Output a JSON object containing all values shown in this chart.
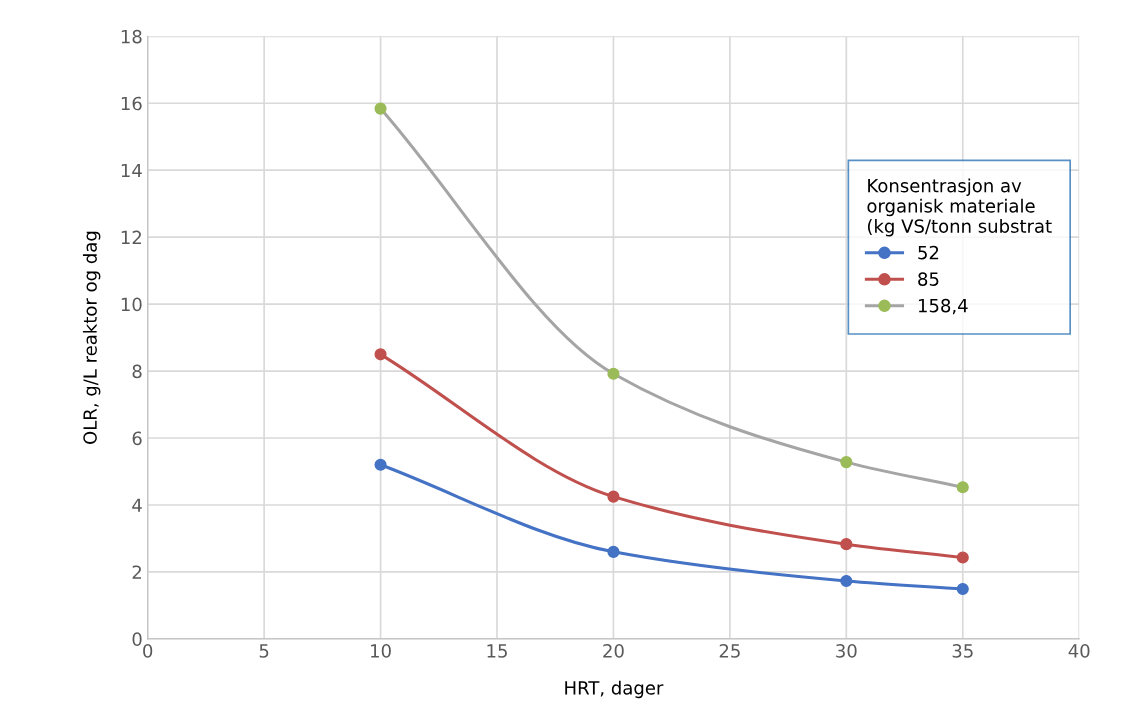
{
  "chart_data": {
    "type": "line",
    "xlabel": "HRT, dager",
    "ylabel": "OLR, g/L reaktor og dag",
    "legend_title": "Konsentrasjon av\norganisk materiale\n(kg VS/tonn substrat",
    "x": [
      10,
      20,
      30,
      35
    ],
    "series": [
      {
        "name": "52",
        "color": "#4472c4",
        "values": [
          5.2,
          2.6,
          1.73,
          1.49
        ]
      },
      {
        "name": "85",
        "color": "#c0504d",
        "values": [
          8.5,
          4.25,
          2.83,
          2.43
        ]
      },
      {
        "name": "158,4",
        "color": "#a5a5a5",
        "colors": [
          "#9bbb59",
          "#9bbb59",
          "#9bbb59",
          "#9bbb59"
        ],
        "values": [
          15.84,
          7.92,
          5.28,
          4.53
        ]
      }
    ],
    "xlim": [
      0,
      40
    ],
    "xticks": [
      0,
      5,
      10,
      15,
      20,
      25,
      30,
      35,
      40
    ],
    "ylim": [
      0,
      18
    ],
    "yticks": [
      0,
      2,
      4,
      6,
      8,
      10,
      12,
      14,
      16,
      18
    ],
    "grid": true,
    "legend": "right",
    "marker": "circle",
    "line_style": "solid"
  }
}
